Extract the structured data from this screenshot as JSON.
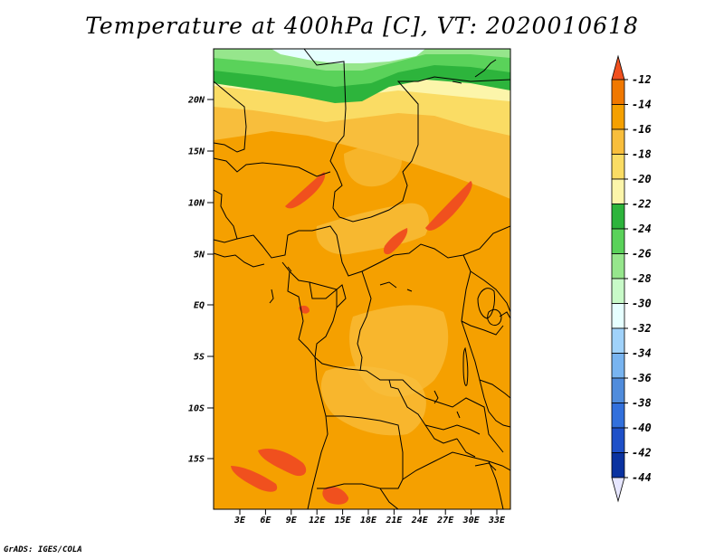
{
  "title": "Temperature at 400hPa [C], VT: 2020010618",
  "credit": "GrADS: IGES/COLA",
  "map": {
    "lat_labels": [
      "20N",
      "15N",
      "10N",
      "5N",
      "EQ",
      "5S",
      "10S",
      "15S"
    ],
    "lon_labels": [
      "3E",
      "6E",
      "9E",
      "12E",
      "15E",
      "18E",
      "21E",
      "24E",
      "27E",
      "30E",
      "33E"
    ]
  },
  "colorbar": {
    "labels": [
      "-12",
      "-14",
      "-16",
      "-18",
      "-20",
      "-22",
      "-24",
      "-26",
      "-28",
      "-30",
      "-32",
      "-34",
      "-36",
      "-38",
      "-40",
      "-42",
      "-44"
    ],
    "colors": [
      "#f0501e",
      "#f07800",
      "#f5a000",
      "#f8be3c",
      "#fadc64",
      "#fcf5aa",
      "#2db43c",
      "#5ad25a",
      "#96e68c",
      "#c8fac8",
      "#e6ffff",
      "#a0d2fa",
      "#78b4f0",
      "#508cdc",
      "#3270dc",
      "#1e50c8",
      "#0a32a0",
      "#000a78",
      "#e6e6ff"
    ]
  },
  "colors": {
    "base_orange": "#f5a000",
    "light_orange": "#f8be3c",
    "deep_orange": "#f07800",
    "hot_patch": "#f0501e",
    "pale_yellow": "#fadc64"
  }
}
